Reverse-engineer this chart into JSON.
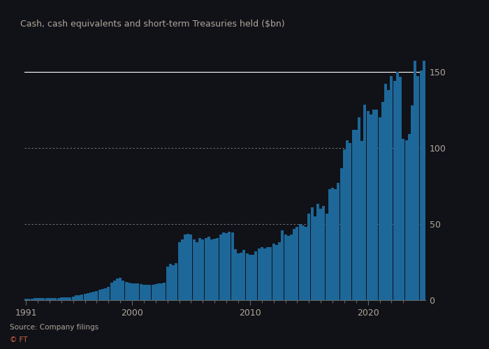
{
  "title": "Cash, cash equivalents and short-term Treasuries held ($bn)",
  "source": "Source: Company filings",
  "footer": "© FT",
  "bar_color": "#1d6899",
  "background_color": "#111118",
  "text_color": "#b0a89a",
  "grid_color_solid": "#ffffff",
  "grid_color_dotted": "#888888",
  "footer_color": "#cc6644",
  "ylim": [
    0,
    165
  ],
  "yticks": [
    0,
    50,
    100,
    150
  ],
  "solid_yticks": [
    0,
    150
  ],
  "dotted_yticks": [
    50,
    100
  ],
  "xlabel_years": [
    1991,
    2000,
    2010,
    2020
  ],
  "data": {
    "values": [
      1.0,
      1.1,
      1.1,
      1.2,
      1.3,
      1.3,
      1.4,
      1.4,
      1.5,
      1.5,
      1.6,
      1.6,
      1.7,
      1.8,
      1.9,
      2.0,
      2.5,
      3.0,
      3.3,
      3.5,
      4.0,
      4.5,
      5.0,
      5.5,
      6.0,
      7.0,
      7.5,
      7.8,
      8.5,
      11.5,
      13.0,
      14.0,
      14.5,
      13.0,
      12.0,
      11.5,
      11.0,
      11.0,
      10.8,
      10.5,
      10.0,
      10.0,
      10.2,
      10.3,
      10.5,
      10.8,
      11.0,
      11.5,
      22.0,
      24.0,
      23.0,
      24.3,
      38.0,
      40.0,
      43.0,
      43.4,
      43.0,
      40.0,
      38.0,
      40.6,
      40.0,
      41.0,
      41.5,
      40.0,
      40.5,
      41.0,
      43.0,
      44.3,
      44.0,
      45.0,
      44.5,
      33.4,
      30.5,
      31.0,
      33.0,
      30.6,
      30.0,
      30.0,
      32.0,
      34.0,
      35.0,
      34.0,
      35.0,
      34.8,
      37.0,
      36.0,
      38.0,
      46.0,
      43.0,
      42.0,
      43.0,
      46.6,
      48.0,
      50.0,
      49.0,
      48.2,
      57.0,
      61.0,
      55.0,
      63.3,
      60.0,
      62.0,
      57.0,
      72.7,
      74.0,
      73.0,
      77.0,
      86.4,
      99.0,
      105.0,
      103.0,
      112.0,
      112.0,
      120.0,
      104.5,
      128.2,
      124.0,
      122.0,
      125.0,
      125.0,
      120.0,
      130.0,
      142.0,
      138.0,
      147.0,
      144.0,
      150.0,
      146.8,
      106.0,
      105.0,
      109.0,
      128.0,
      157.2,
      147.0,
      151.0,
      157.2
    ]
  }
}
